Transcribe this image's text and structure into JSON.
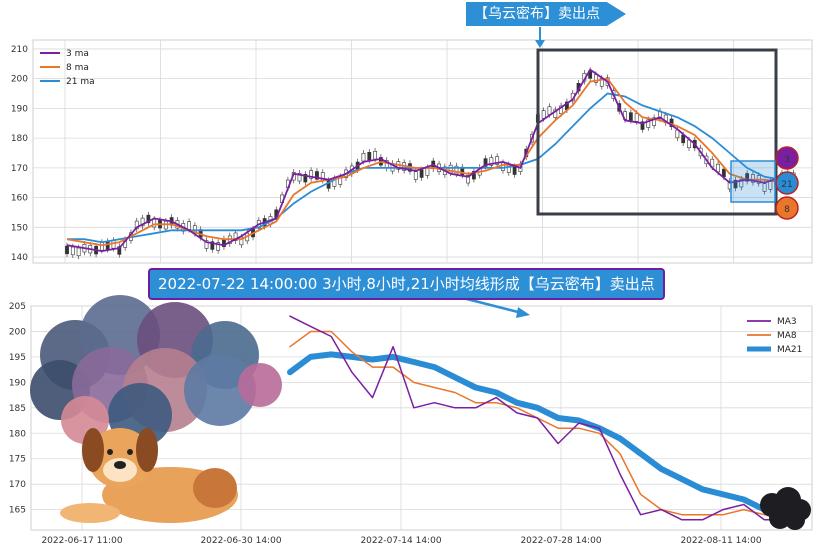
{
  "banner_top": {
    "text": "【乌云密布】卖出点"
  },
  "banner_mid": {
    "text": "2022-07-22 14:00:00 3小时,8小时,21小时均线形成【乌云密布】卖出点"
  },
  "badges": {
    "ma3": "3",
    "ma21": "21",
    "ma8": "8"
  },
  "colors": {
    "ma3": "#7b1fa2",
    "ma8": "#e8762b",
    "ma21": "#2b8cd6",
    "badge3": "#7b1fa2",
    "badge21": "#2b8cd6",
    "badge8": "#e8762b",
    "grid": "#d9d9d9"
  },
  "chart_data": [
    {
      "type": "line",
      "panel": "top",
      "ylim": [
        138,
        213
      ],
      "yticks": [
        140,
        150,
        160,
        170,
        180,
        190,
        200,
        210
      ],
      "legend": [
        "3 ma",
        "8 ma",
        "21 ma"
      ],
      "legend_position": "top-left",
      "grid": true,
      "series": [
        {
          "name": "3 ma",
          "values": [
            144,
            143,
            142,
            143,
            150,
            153,
            152,
            149,
            145,
            144,
            147,
            151,
            153,
            168,
            167,
            166,
            168,
            172,
            173,
            170,
            169,
            171,
            168,
            167,
            171,
            172,
            170,
            185,
            189,
            193,
            203,
            199,
            186,
            185,
            187,
            183,
            178,
            170,
            165,
            166,
            165,
            167
          ]
        },
        {
          "name": "8 ma",
          "values": [
            146,
            145,
            144,
            145,
            148,
            151,
            151,
            149,
            147,
            146,
            146,
            149,
            152,
            161,
            165,
            166,
            167,
            170,
            172,
            171,
            170,
            170,
            169,
            168,
            169,
            171,
            171,
            180,
            186,
            191,
            199,
            200,
            192,
            187,
            186,
            184,
            181,
            175,
            168,
            166,
            166,
            165
          ]
        },
        {
          "name": "21 ma",
          "values": [
            146,
            146,
            145,
            146,
            147,
            148,
            149,
            149,
            149,
            149,
            149,
            150,
            153,
            158,
            162,
            165,
            168,
            170,
            170,
            170,
            170,
            170,
            170,
            170,
            170,
            170,
            171,
            173,
            178,
            184,
            190,
            195,
            194,
            191,
            189,
            187,
            184,
            180,
            175,
            170,
            167,
            166
          ]
        }
      ]
    },
    {
      "type": "line",
      "panel": "bottom",
      "ylim": [
        161,
        205
      ],
      "yticks": [
        165,
        170,
        175,
        180,
        185,
        190,
        195,
        200,
        205
      ],
      "xticks": [
        "2022-06-17 11:00",
        "2022-06-30 14:00",
        "2022-07-14 14:00",
        "2022-07-28 14:00",
        "2022-08-11 14:00"
      ],
      "legend": [
        "MA3",
        "MA8",
        "MA21"
      ],
      "legend_position": "top-right",
      "grid": true,
      "series": [
        {
          "name": "MA3",
          "values": [
            203,
            201,
            199,
            192,
            187,
            197,
            185,
            186,
            185,
            185,
            187,
            184,
            183,
            178,
            182,
            181,
            172,
            164,
            165,
            163,
            163,
            165,
            166,
            163,
            163
          ]
        },
        {
          "name": "MA8",
          "values": [
            197,
            200,
            200,
            196,
            193,
            193,
            190,
            189,
            188,
            186,
            186,
            185,
            183,
            181,
            181,
            180,
            176,
            168,
            165,
            164,
            164,
            164,
            165,
            164,
            164
          ]
        },
        {
          "name": "MA21",
          "values": [
            192,
            195,
            195.5,
            195,
            194.5,
            195,
            194,
            193,
            191,
            189,
            188,
            186,
            185,
            183,
            182.5,
            181,
            179,
            176,
            173,
            171,
            169,
            168,
            167,
            165,
            164
          ]
        }
      ]
    }
  ]
}
